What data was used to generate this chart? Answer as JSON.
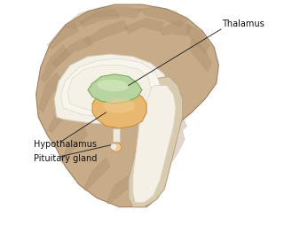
{
  "bg_color": "#ffffff",
  "brain_color": "#c8ab88",
  "brain_dark": "#a88c6a",
  "brain_mid": "#b89870",
  "inner_white": "#ede8dc",
  "inner_cream": "#f5f0e5",
  "corpus_white": "#f8f4ee",
  "thalamus_color": "#b8d4a0",
  "thalamus_dark": "#7aab58",
  "thalamus_light": "#d4e8be",
  "hypothalamus_color": "#e8b870",
  "hypothalamus_dark": "#c89040",
  "hypothalamus_light": "#f0cc90",
  "brainstem_color": "#d8cbb0",
  "brainstem_white": "#ede8dc",
  "line_color": "#222222",
  "text_color": "#111111",
  "labels": {
    "thalamus": "Thalamus",
    "hypothalamus": "Hypothalamus",
    "pituitary": "Pituitary gland"
  },
  "label_fontsize": 7.0
}
